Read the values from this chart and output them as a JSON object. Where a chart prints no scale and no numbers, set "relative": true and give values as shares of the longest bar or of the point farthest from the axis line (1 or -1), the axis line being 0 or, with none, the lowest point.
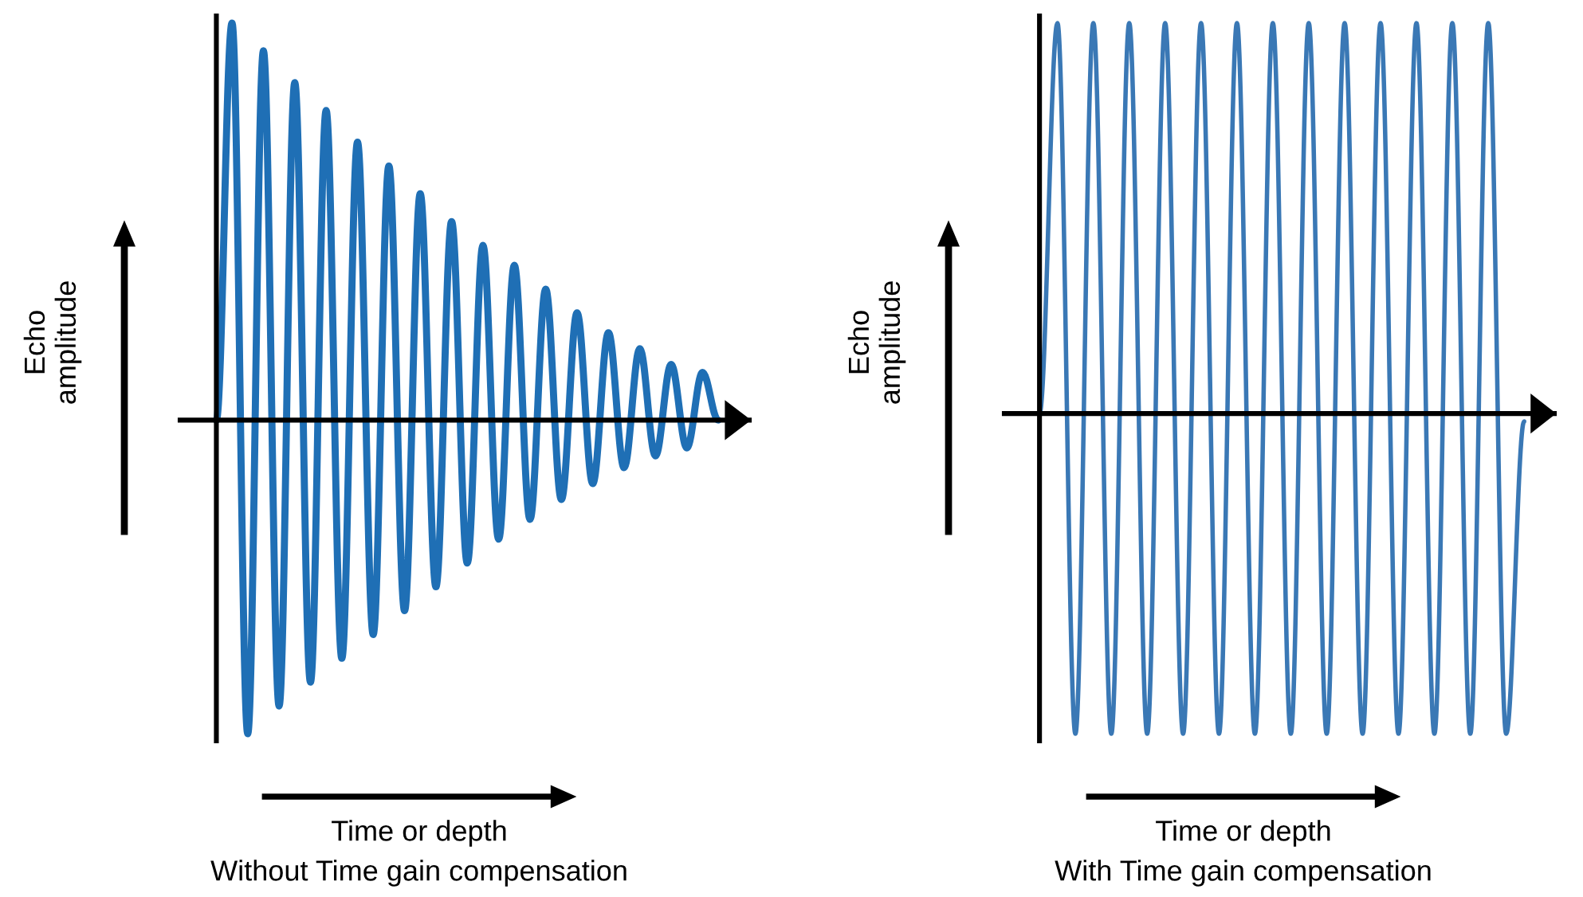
{
  "chart_data": [
    {
      "type": "line",
      "relative": true,
      "ylabel": "Echo\namplitude",
      "xlabel": "Time or depth",
      "annotations": [
        "Without Time gain compensation"
      ],
      "categories": [
        null,
        null,
        null,
        null,
        null,
        null,
        null,
        null,
        null,
        null,
        null,
        null,
        null,
        null,
        null,
        null,
        null,
        null,
        null,
        null,
        null,
        null,
        null,
        null,
        null,
        null,
        null,
        null,
        null,
        null,
        null,
        null,
        null
      ],
      "series": [
        {
          "color": "#1f6fb5",
          "values": [
            0,
            1.0,
            -0.79,
            0.93,
            -0.72,
            0.85,
            -0.66,
            0.78,
            -0.6,
            0.7,
            -0.54,
            0.64,
            -0.48,
            0.57,
            -0.42,
            0.5,
            -0.36,
            0.44,
            -0.3,
            0.39,
            -0.25,
            0.33,
            -0.2,
            0.27,
            -0.16,
            0.22,
            -0.12,
            0.18,
            -0.09,
            0.14,
            -0.07,
            0.12,
            0
          ]
        }
      ],
      "grid": false,
      "legend": false
    },
    {
      "type": "line",
      "relative": true,
      "ylabel": "Echo\namplitude",
      "xlabel": "Time or depth",
      "annotations": [
        "With Time gain compensation"
      ],
      "categories": [
        null,
        null,
        null,
        null,
        null,
        null,
        null,
        null,
        null,
        null,
        null,
        null,
        null,
        null,
        null,
        null,
        null,
        null,
        null,
        null,
        null,
        null,
        null,
        null,
        null,
        null,
        null,
        null
      ],
      "series": [
        {
          "color": "#3a78b5",
          "values": [
            0,
            1.0,
            -0.82,
            1.0,
            -0.82,
            1.0,
            -0.82,
            1.0,
            -0.82,
            1.0,
            -0.82,
            1.0,
            -0.82,
            1.0,
            -0.82,
            1.0,
            -0.82,
            1.0,
            -0.82,
            1.0,
            -0.82,
            1.0,
            -0.82,
            1.0,
            -0.82,
            1.0,
            -0.82,
            -0.02
          ]
        }
      ],
      "grid": false,
      "legend": false
    }
  ]
}
